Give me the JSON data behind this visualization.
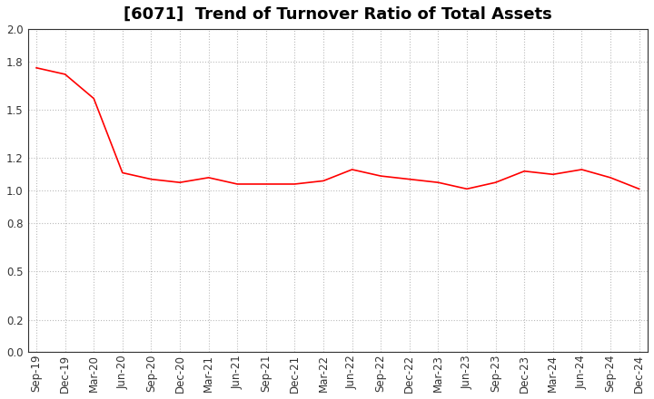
{
  "title": "[6071]  Trend of Turnover Ratio of Total Assets",
  "x_labels": [
    "Sep-19",
    "Dec-19",
    "Mar-20",
    "Jun-20",
    "Sep-20",
    "Dec-20",
    "Mar-21",
    "Jun-21",
    "Sep-21",
    "Dec-21",
    "Mar-22",
    "Jun-22",
    "Sep-22",
    "Dec-22",
    "Mar-23",
    "Jun-23",
    "Sep-23",
    "Dec-23",
    "Mar-24",
    "Jun-24",
    "Sep-24",
    "Dec-24"
  ],
  "y_values": [
    1.76,
    1.72,
    1.57,
    1.11,
    1.07,
    1.05,
    1.08,
    1.04,
    1.04,
    1.04,
    1.06,
    1.13,
    1.09,
    1.07,
    1.05,
    1.01,
    1.05,
    1.12,
    1.1,
    1.13,
    1.08,
    1.01
  ],
  "line_color": "#FF0000",
  "fill_color": "#FFAAAA",
  "ylim": [
    0.0,
    2.0
  ],
  "yticks": [
    0.0,
    0.2,
    0.5,
    0.8,
    1.0,
    1.2,
    1.5,
    1.8,
    2.0
  ],
  "grid_color": "#BBBBBB",
  "background_color": "#FFFFFF",
  "plot_bg_color": "#FFFFFF",
  "title_fontsize": 13,
  "axis_fontsize": 8.5
}
